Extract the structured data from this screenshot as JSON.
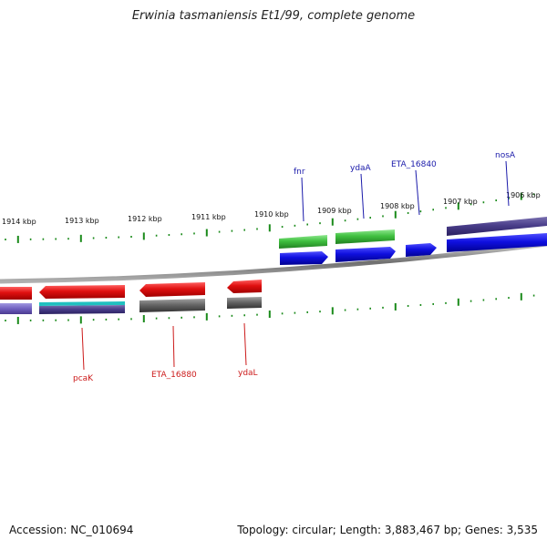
{
  "title": "Erwinia tasmaniensis Et1/99, complete genome",
  "footer": {
    "accession": "Accession: NC_010694",
    "summary": "Topology: circular; Length: 3,883,467 bp; Genes: 3,535"
  },
  "colors": {
    "tick_green": "#1a8a1a",
    "backbone": "#808080",
    "forward_label": "#1a1aaa",
    "reverse_label": "#cc1a1a",
    "red": "#e01010",
    "green": "#40c040",
    "blue": "#1010e0",
    "purple": "#4a3e8a",
    "gray": "#666666",
    "cyan": "#20c0c0",
    "lavender": "#7060c0"
  },
  "scale_labels": [
    "1914 kbp",
    "1913 kbp",
    "1912 kbp",
    "1911 kbp",
    "1910 kbp",
    "1909 kbp",
    "1908 kbp",
    "1907 kbp",
    "1906 kbp"
  ],
  "forward_genes": [
    "fnr",
    "ydaA",
    "ETA_16840",
    "nosA"
  ],
  "reverse_genes": [
    "pcaK",
    "ETA_16880",
    "ydaL"
  ]
}
